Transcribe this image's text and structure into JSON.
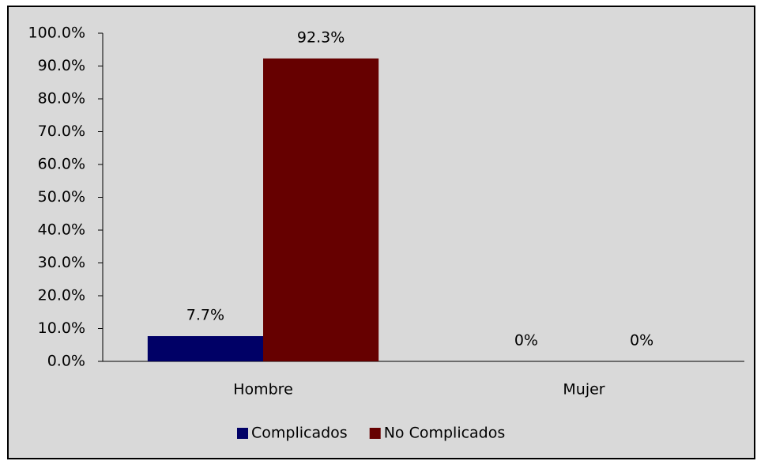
{
  "chart_data": {
    "type": "bar",
    "categories": [
      "Hombre",
      "Mujer"
    ],
    "series": [
      {
        "name": "Complicados",
        "color": "#000066",
        "values": [
          7.7,
          0
        ],
        "value_labels": [
          "7.7%",
          "0%"
        ]
      },
      {
        "name": "No Complicados",
        "color": "#660000",
        "values": [
          92.3,
          0
        ],
        "value_labels": [
          "92.3%",
          "0%"
        ]
      }
    ],
    "ylim": [
      0,
      100
    ],
    "yticks": [
      {
        "value": 0,
        "label": "0.0%"
      },
      {
        "value": 10,
        "label": "10.0%"
      },
      {
        "value": 20,
        "label": "20.0%"
      },
      {
        "value": 30,
        "label": "30.0%"
      },
      {
        "value": 40,
        "label": "40.0%"
      },
      {
        "value": 50,
        "label": "50.0%"
      },
      {
        "value": 60,
        "label": "60.0%"
      },
      {
        "value": 70,
        "label": "70.0%"
      },
      {
        "value": 80,
        "label": "80.0%"
      },
      {
        "value": 90,
        "label": "90.0%"
      },
      {
        "value": 100,
        "label": "100.0%"
      }
    ],
    "grid": false,
    "legend": "bottom"
  }
}
